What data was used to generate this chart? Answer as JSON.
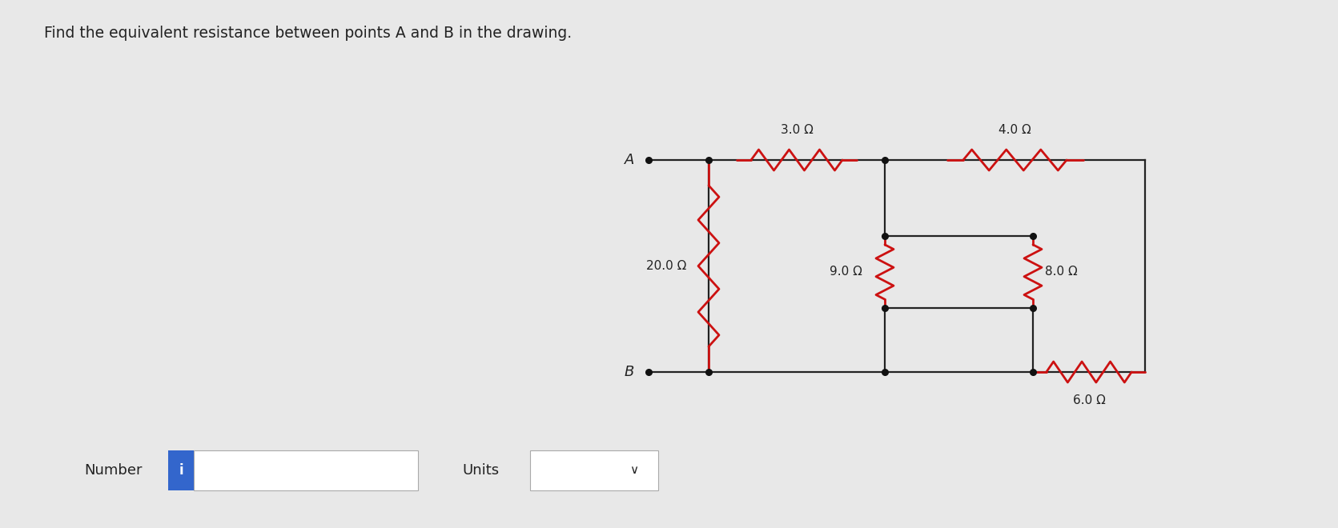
{
  "title": "Find the equivalent resistance between points A and B in the drawing.",
  "title_fontsize": 13.5,
  "background_color": "#e8e8e8",
  "wire_color": "#222222",
  "resistor_color": "#cc1111",
  "dot_color": "#111111",
  "label_color": "#222222",
  "resistors": {
    "R20": {
      "label": "20.0 Ω"
    },
    "R3": {
      "label": "3.0 Ω"
    },
    "R9": {
      "label": "9.0 Ω"
    },
    "R4": {
      "label": "4.0 Ω"
    },
    "R8": {
      "label": "8.0 Ω"
    },
    "R6": {
      "label": "6.0 Ω"
    }
  },
  "number_label": "Number",
  "units_label": "Units",
  "info_box_color": "#3366cc",
  "node_A": "A",
  "node_B": "B"
}
